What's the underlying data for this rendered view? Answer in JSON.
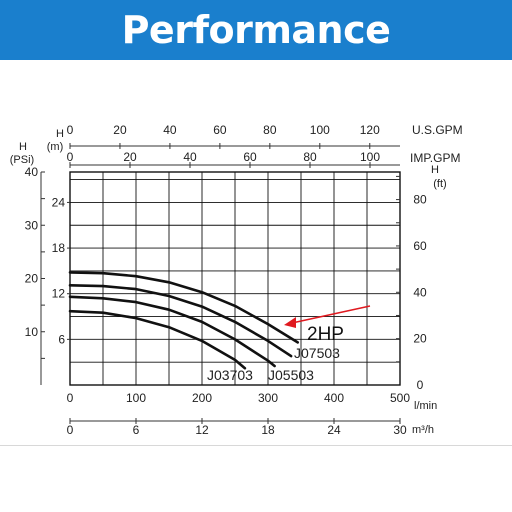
{
  "header": {
    "title": "Performance"
  },
  "chart_data": {
    "type": "line",
    "title": "",
    "axes": {
      "bottom_primary": {
        "unit": "l/min",
        "ticks": [
          "0",
          "100",
          "200",
          "300",
          "400",
          "500"
        ],
        "range": [
          0,
          500
        ]
      },
      "bottom_secondary": {
        "unit": "m³/h",
        "ticks": [
          "0",
          "6",
          "12",
          "18",
          "24",
          "30"
        ],
        "range": [
          0,
          30
        ]
      },
      "top_primary": {
        "unit": "U.S.GPM",
        "ticks": [
          "0",
          "20",
          "40",
          "60",
          "80",
          "100",
          "120"
        ],
        "range": [
          0,
          132.1
        ]
      },
      "top_secondary": {
        "unit": "IMP.GPM",
        "ticks": [
          "0",
          "20",
          "40",
          "60",
          "80",
          "100"
        ],
        "range": [
          0,
          110
        ]
      },
      "left_head_m": {
        "label_top": "H",
        "label_bottom": "(m)",
        "ticks": [
          "6",
          "12",
          "18",
          "24"
        ],
        "range": [
          0,
          28
        ]
      },
      "left_psi": {
        "label_top": "H",
        "label_bottom": "(PSi)",
        "ticks": [
          "10",
          "20",
          "30",
          "40"
        ],
        "range": [
          0,
          40
        ]
      },
      "right_ft": {
        "label_top": "H",
        "label_bottom": "(ft)",
        "ticks": [
          "0",
          "20",
          "40",
          "60",
          "80"
        ],
        "range": [
          0,
          91.9
        ]
      }
    },
    "x_unit": "l/min",
    "y_unit": "m",
    "grid": true,
    "series": [
      {
        "name": "J03703",
        "x": [
          0,
          50,
          100,
          150,
          200,
          250,
          265
        ],
        "y": [
          9.7,
          9.5,
          8.8,
          7.6,
          5.8,
          3.3,
          2.2
        ]
      },
      {
        "name": "J05503",
        "x": [
          0,
          50,
          100,
          150,
          200,
          250,
          300,
          310
        ],
        "y": [
          11.6,
          11.4,
          10.9,
          9.9,
          8.3,
          6.0,
          3.2,
          2.5
        ]
      },
      {
        "name": "J07503",
        "x": [
          0,
          50,
          100,
          150,
          200,
          250,
          300,
          335
        ],
        "y": [
          13.1,
          13.0,
          12.6,
          11.7,
          10.3,
          8.3,
          5.8,
          3.8
        ]
      },
      {
        "name": "2HP",
        "x": [
          0,
          50,
          100,
          150,
          200,
          250,
          300,
          345
        ],
        "y": [
          14.8,
          14.7,
          14.3,
          13.5,
          12.2,
          10.4,
          8.0,
          5.6
        ]
      }
    ],
    "annotations": [
      {
        "text": "2HP",
        "points_to_series": "2HP",
        "color": "#e0191f"
      },
      {
        "text": "J07503"
      },
      {
        "text": "J05503"
      },
      {
        "text": "J03703"
      }
    ]
  }
}
